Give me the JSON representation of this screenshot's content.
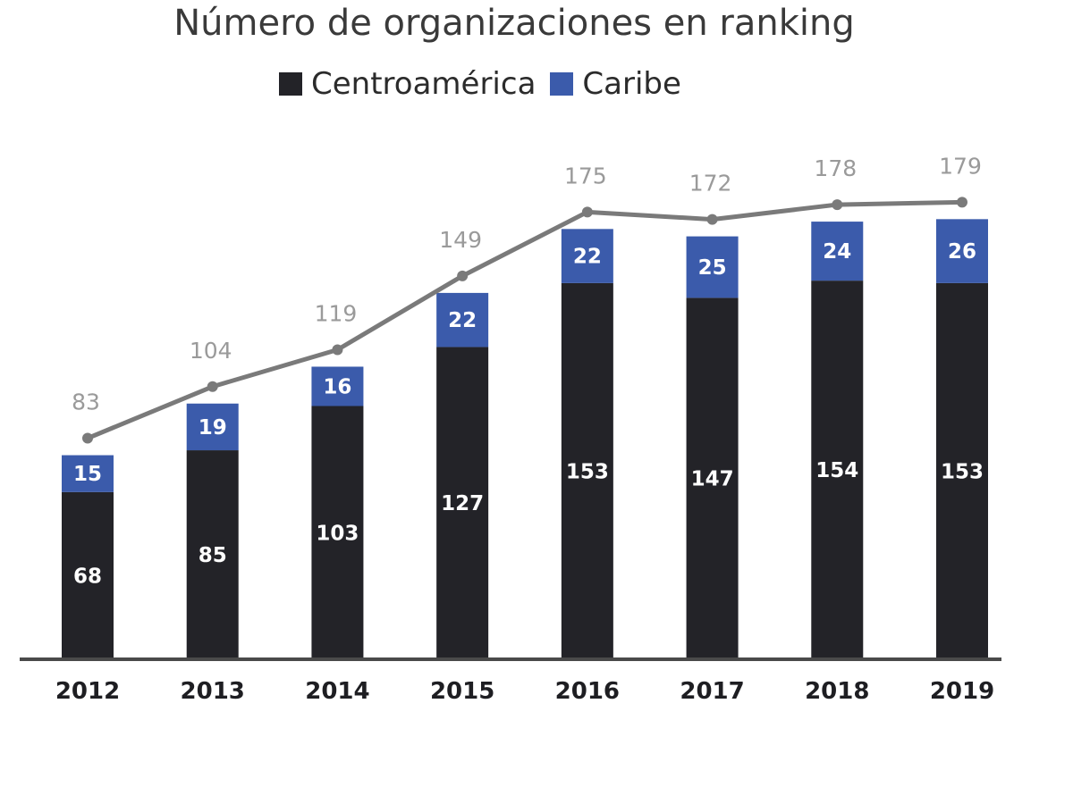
{
  "chart_data": {
    "type": "bar",
    "stacked": true,
    "title": "Número de organizaciones en ranking",
    "categories": [
      "2012",
      "2013",
      "2014",
      "2015",
      "2016",
      "2017",
      "2018",
      "2019"
    ],
    "series": [
      {
        "name": "Centroamérica",
        "color": "#232328",
        "values": [
          68,
          85,
          103,
          127,
          153,
          147,
          154,
          153
        ]
      },
      {
        "name": "Caribe",
        "color": "#3b5bab",
        "values": [
          15,
          19,
          16,
          22,
          22,
          25,
          24,
          26
        ]
      }
    ],
    "line": {
      "color": "#7a7a7a",
      "values": [
        83,
        104,
        119,
        149,
        175,
        172,
        178,
        179
      ]
    },
    "legend_position": "top",
    "grid": false,
    "ylim": [
      0,
      210
    ]
  }
}
